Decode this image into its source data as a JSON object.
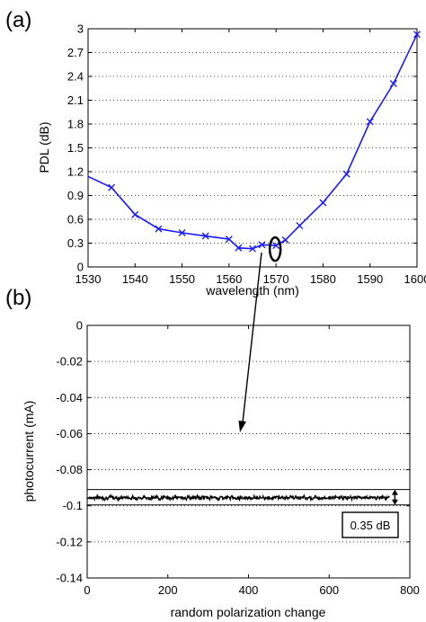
{
  "panel_labels": [
    "(a)",
    "(b)"
  ],
  "annotation": "0.35 dB",
  "colors": {
    "series_a": "#1a1aff",
    "series_b": "#000000",
    "axes": "#000000",
    "grid": "#000000"
  },
  "chart_data": [
    {
      "type": "line",
      "xlabel": "wavelength (nm)",
      "ylabel": "PDL (dB)",
      "xlim": [
        1530,
        1600
      ],
      "ylim": [
        0,
        3
      ],
      "xticks": [
        1530,
        1540,
        1550,
        1560,
        1570,
        1580,
        1590,
        1600
      ],
      "yticks": [
        0,
        0.3,
        0.6,
        0.9,
        1.2,
        1.5,
        1.8,
        2.1,
        2.4,
        2.7,
        3
      ],
      "ytick_labels": [
        "0",
        "0.3",
        "0.6",
        "0.9",
        "1.2",
        "1.5",
        "1.8",
        "2.1",
        "2.4",
        "2.7",
        "3"
      ],
      "grid": "horizontal dotted",
      "marker": "x",
      "series": [
        {
          "x": [
            1530,
            1535,
            1540,
            1545,
            1550,
            1555,
            1560,
            1562,
            1565,
            1567,
            1570,
            1572,
            1575,
            1580,
            1585,
            1590,
            1595,
            1600
          ],
          "y": [
            1.14,
            1.0,
            0.66,
            0.48,
            0.43,
            0.39,
            0.35,
            0.24,
            0.23,
            0.28,
            0.27,
            0.34,
            0.52,
            0.81,
            1.17,
            1.83,
            2.31,
            2.93
          ],
          "marker_flags": [
            false,
            true,
            true,
            true,
            true,
            true,
            true,
            true,
            true,
            true,
            true,
            true,
            true,
            true,
            true,
            true,
            true,
            true
          ]
        }
      ],
      "highlight": {
        "x": 1570,
        "y": 0.27,
        "shape": "ellipse"
      }
    },
    {
      "type": "line",
      "xlabel": "random polarization change",
      "ylabel": "photocurrent (mA)",
      "xlim": [
        0,
        800
      ],
      "ylim": [
        -0.14,
        0
      ],
      "xticks": [
        0,
        200,
        400,
        600,
        800
      ],
      "yticks": [
        0,
        -0.02,
        -0.04,
        -0.06,
        -0.08,
        -0.1,
        -0.12,
        -0.14
      ],
      "ytick_labels": [
        "0",
        "-0.02",
        "-0.04",
        "-0.06",
        "-0.08",
        "-0.1",
        "-0.12",
        "-0.14"
      ],
      "grid": "horizontal dotted",
      "series": [
        {
          "x_range": [
            0,
            750
          ],
          "points": 750,
          "mean": -0.0955,
          "range": [
            -0.0975,
            -0.0935
          ]
        }
      ],
      "reference_lines": [
        -0.091,
        -0.0995
      ],
      "double_arrow": {
        "x": 763,
        "y_range": [
          -0.091,
          -0.0995
        ]
      }
    }
  ]
}
